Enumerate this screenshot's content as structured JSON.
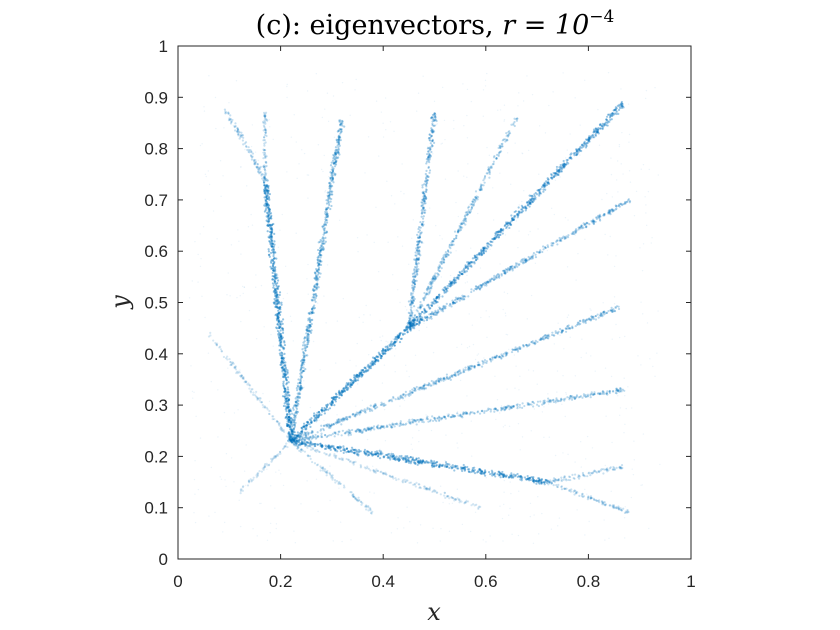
{
  "chart_data": {
    "type": "scatter",
    "title": "(c): eigenvectors, ",
    "title_math": "r = 10",
    "title_exp": "−4",
    "xlabel": "x",
    "ylabel": "y",
    "xlim": [
      0,
      1
    ],
    "ylim": [
      0,
      1
    ],
    "xticks": [
      "0",
      "0.2",
      "0.4",
      "0.6",
      "0.8",
      "1"
    ],
    "yticks": [
      "0",
      "0.1",
      "0.2",
      "0.3",
      "0.4",
      "0.5",
      "0.6",
      "0.7",
      "0.8",
      "0.9",
      "1"
    ],
    "grid": false,
    "marker_color": "#0072BD",
    "hub": [
      0.22,
      0.23
    ],
    "rays": [
      {
        "from": [
          0.22,
          0.23
        ],
        "to": [
          0.17,
          0.74
        ],
        "weight": 1.0
      },
      {
        "from": [
          0.17,
          0.74
        ],
        "to": [
          0.09,
          0.88
        ],
        "weight": 0.35
      },
      {
        "from": [
          0.17,
          0.74
        ],
        "to": [
          0.17,
          0.87
        ],
        "weight": 0.3
      },
      {
        "from": [
          0.22,
          0.23
        ],
        "to": [
          0.32,
          0.86
        ],
        "weight": 0.7
      },
      {
        "from": [
          0.22,
          0.23
        ],
        "to": [
          0.45,
          0.45
        ],
        "weight": 1.0
      },
      {
        "from": [
          0.45,
          0.45
        ],
        "to": [
          0.5,
          0.87
        ],
        "weight": 0.6
      },
      {
        "from": [
          0.45,
          0.45
        ],
        "to": [
          0.66,
          0.86
        ],
        "weight": 0.45
      },
      {
        "from": [
          0.45,
          0.45
        ],
        "to": [
          0.87,
          0.89
        ],
        "weight": 0.85
      },
      {
        "from": [
          0.45,
          0.45
        ],
        "to": [
          0.88,
          0.7
        ],
        "weight": 0.55
      },
      {
        "from": [
          0.22,
          0.23
        ],
        "to": [
          0.86,
          0.49
        ],
        "weight": 0.5
      },
      {
        "from": [
          0.22,
          0.23
        ],
        "to": [
          0.87,
          0.33
        ],
        "weight": 0.45
      },
      {
        "from": [
          0.22,
          0.23
        ],
        "to": [
          0.72,
          0.15
        ],
        "weight": 0.9
      },
      {
        "from": [
          0.72,
          0.15
        ],
        "to": [
          0.87,
          0.18
        ],
        "weight": 0.3
      },
      {
        "from": [
          0.72,
          0.15
        ],
        "to": [
          0.88,
          0.09
        ],
        "weight": 0.3
      },
      {
        "from": [
          0.22,
          0.23
        ],
        "to": [
          0.06,
          0.44
        ],
        "weight": 0.15
      },
      {
        "from": [
          0.22,
          0.23
        ],
        "to": [
          0.12,
          0.13
        ],
        "weight": 0.15
      },
      {
        "from": [
          0.22,
          0.23
        ],
        "to": [
          0.38,
          0.09
        ],
        "weight": 0.2
      },
      {
        "from": [
          0.22,
          0.23
        ],
        "to": [
          0.59,
          0.1
        ],
        "weight": 0.15
      }
    ]
  }
}
